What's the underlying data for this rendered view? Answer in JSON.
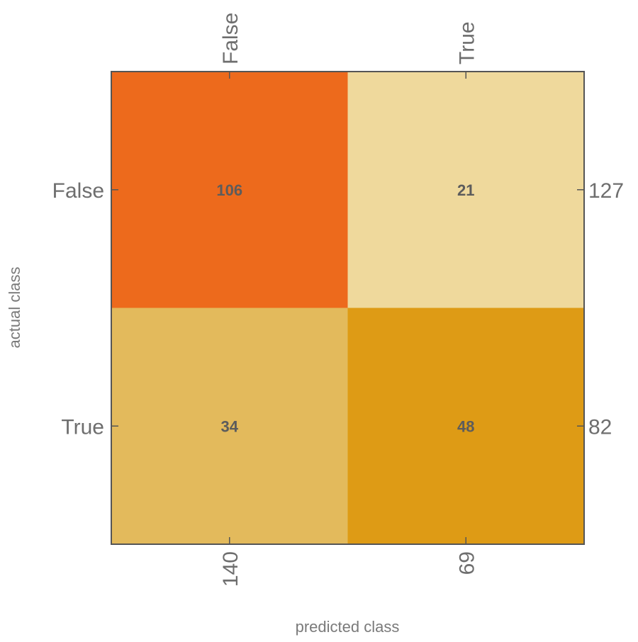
{
  "chart_data": {
    "type": "heatmap",
    "title": "",
    "xlabel": "predicted class",
    "ylabel": "actual class",
    "x_categories": [
      "False",
      "True"
    ],
    "y_categories": [
      "False",
      "True"
    ],
    "values": [
      [
        106,
        21
      ],
      [
        34,
        48
      ]
    ],
    "row_totals": [
      "127",
      "82"
    ],
    "column_totals": [
      "140",
      "69"
    ],
    "colors": [
      [
        "#ed6a1c",
        "#efd99c"
      ],
      [
        "#e3ba5c",
        "#de9b15"
      ]
    ],
    "grid": false,
    "legend": "none"
  }
}
